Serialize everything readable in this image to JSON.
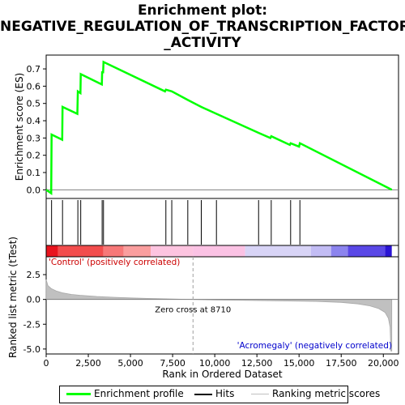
{
  "title_lines": [
    "Enrichment plot:",
    "NEGATIVE_REGULATION_OF_TRANSCRIPTION_FACTOR",
    "_ACTIVITY"
  ],
  "colors": {
    "enrichment_line": "#00ff00",
    "hits": "#000000",
    "metric_fill": "#c0c0c0",
    "zero_cross_line": "#a0a0a0",
    "positive_band": "#ff0000",
    "negative_band": "#0000ff"
  },
  "legend": {
    "enrichment": "Enrichment profile",
    "hits": "Hits",
    "metric": "Ranking metric scores"
  },
  "chart_data": {
    "type": "line",
    "x_max": 20900,
    "es_panel": {
      "ylabel": "Enrichment score (ES)",
      "ylim": [
        -0.05,
        0.78
      ],
      "yticks": [
        0.0,
        0.1,
        0.2,
        0.3,
        0.4,
        0.5,
        0.6,
        0.7
      ],
      "ytick_labels": [
        "0.0",
        "0.1",
        "0.2",
        "0.3",
        "0.4",
        "0.5",
        "0.6",
        "0.7"
      ],
      "points": [
        [
          0,
          0.0
        ],
        [
          300,
          -0.02
        ],
        [
          320,
          0.32
        ],
        [
          950,
          0.29
        ],
        [
          970,
          0.48
        ],
        [
          1850,
          0.44
        ],
        [
          1880,
          0.57
        ],
        [
          2030,
          0.56
        ],
        [
          2050,
          0.67
        ],
        [
          3300,
          0.61
        ],
        [
          3320,
          0.68
        ],
        [
          3380,
          0.68
        ],
        [
          3400,
          0.74
        ],
        [
          7050,
          0.57
        ],
        [
          7100,
          0.58
        ],
        [
          7450,
          0.57
        ],
        [
          8400,
          0.52
        ],
        [
          9200,
          0.48
        ],
        [
          10100,
          0.44
        ],
        [
          12600,
          0.33
        ],
        [
          13300,
          0.3
        ],
        [
          13350,
          0.31
        ],
        [
          14450,
          0.26
        ],
        [
          14500,
          0.27
        ],
        [
          15000,
          0.25
        ],
        [
          15050,
          0.27
        ],
        [
          20500,
          0.0
        ]
      ]
    },
    "hits": [
      320,
      970,
      1880,
      2050,
      3320,
      3400,
      7100,
      7450,
      8400,
      9200,
      10100,
      12600,
      13350,
      14500,
      15050
    ],
    "metric_panel": {
      "ylabel": "Ranked list metric (tTest)",
      "xlabel": "Rank in Ordered Dataset",
      "ylim": [
        -5.5,
        4.3
      ],
      "yticks": [
        -5.0,
        -2.5,
        0.0,
        2.5
      ],
      "ytick_labels": [
        "-5.0",
        "-2.5",
        "0.0",
        "2.5"
      ],
      "xticks": [
        0,
        2500,
        5000,
        7500,
        10000,
        12500,
        15000,
        17500,
        20000
      ],
      "xtick_labels": [
        "0",
        "2,500",
        "5,000",
        "7,500",
        "10,000",
        "12,500",
        "15,000",
        "17,500",
        "20,000"
      ],
      "zero_cross": 8710,
      "zero_cross_label": "Zero cross at 8710",
      "positive_label": "'Control' (positively correlated)",
      "negative_label": "'Acromegaly' (negatively correlated)",
      "curve": [
        [
          0,
          2.0
        ],
        [
          100,
          1.4
        ],
        [
          300,
          1.1
        ],
        [
          600,
          0.85
        ],
        [
          1000,
          0.65
        ],
        [
          1500,
          0.5
        ],
        [
          2000,
          0.42
        ],
        [
          3000,
          0.3
        ],
        [
          4000,
          0.22
        ],
        [
          5000,
          0.15
        ],
        [
          6000,
          0.1
        ],
        [
          7000,
          0.06
        ],
        [
          8000,
          0.02
        ],
        [
          8710,
          0.0
        ],
        [
          10000,
          -0.05
        ],
        [
          12000,
          -0.1
        ],
        [
          14000,
          -0.15
        ],
        [
          16000,
          -0.2
        ],
        [
          17500,
          -0.3
        ],
        [
          18500,
          -0.45
        ],
        [
          19200,
          -0.65
        ],
        [
          19700,
          -0.9
        ],
        [
          20100,
          -1.3
        ],
        [
          20300,
          -1.9
        ],
        [
          20400,
          -2.8
        ],
        [
          20450,
          -5.2
        ],
        [
          20500,
          -5.2
        ]
      ]
    },
    "color_band": [
      {
        "start": 0,
        "end": 700,
        "color": "#e8141e"
      },
      {
        "start": 700,
        "end": 3400,
        "color": "#f24d4d"
      },
      {
        "start": 3400,
        "end": 4600,
        "color": "#f77878"
      },
      {
        "start": 4600,
        "end": 6200,
        "color": "#fa9e9e"
      },
      {
        "start": 6200,
        "end": 8700,
        "color": "#fdc4e0"
      },
      {
        "start": 8700,
        "end": 11800,
        "color": "#fbc2e4"
      },
      {
        "start": 11800,
        "end": 15700,
        "color": "#d8d4f6"
      },
      {
        "start": 15700,
        "end": 16900,
        "color": "#c2bcf4"
      },
      {
        "start": 16900,
        "end": 17900,
        "color": "#8c84ee"
      },
      {
        "start": 17900,
        "end": 20100,
        "color": "#5a48e6"
      },
      {
        "start": 20100,
        "end": 20500,
        "color": "#2a14d4"
      }
    ]
  }
}
